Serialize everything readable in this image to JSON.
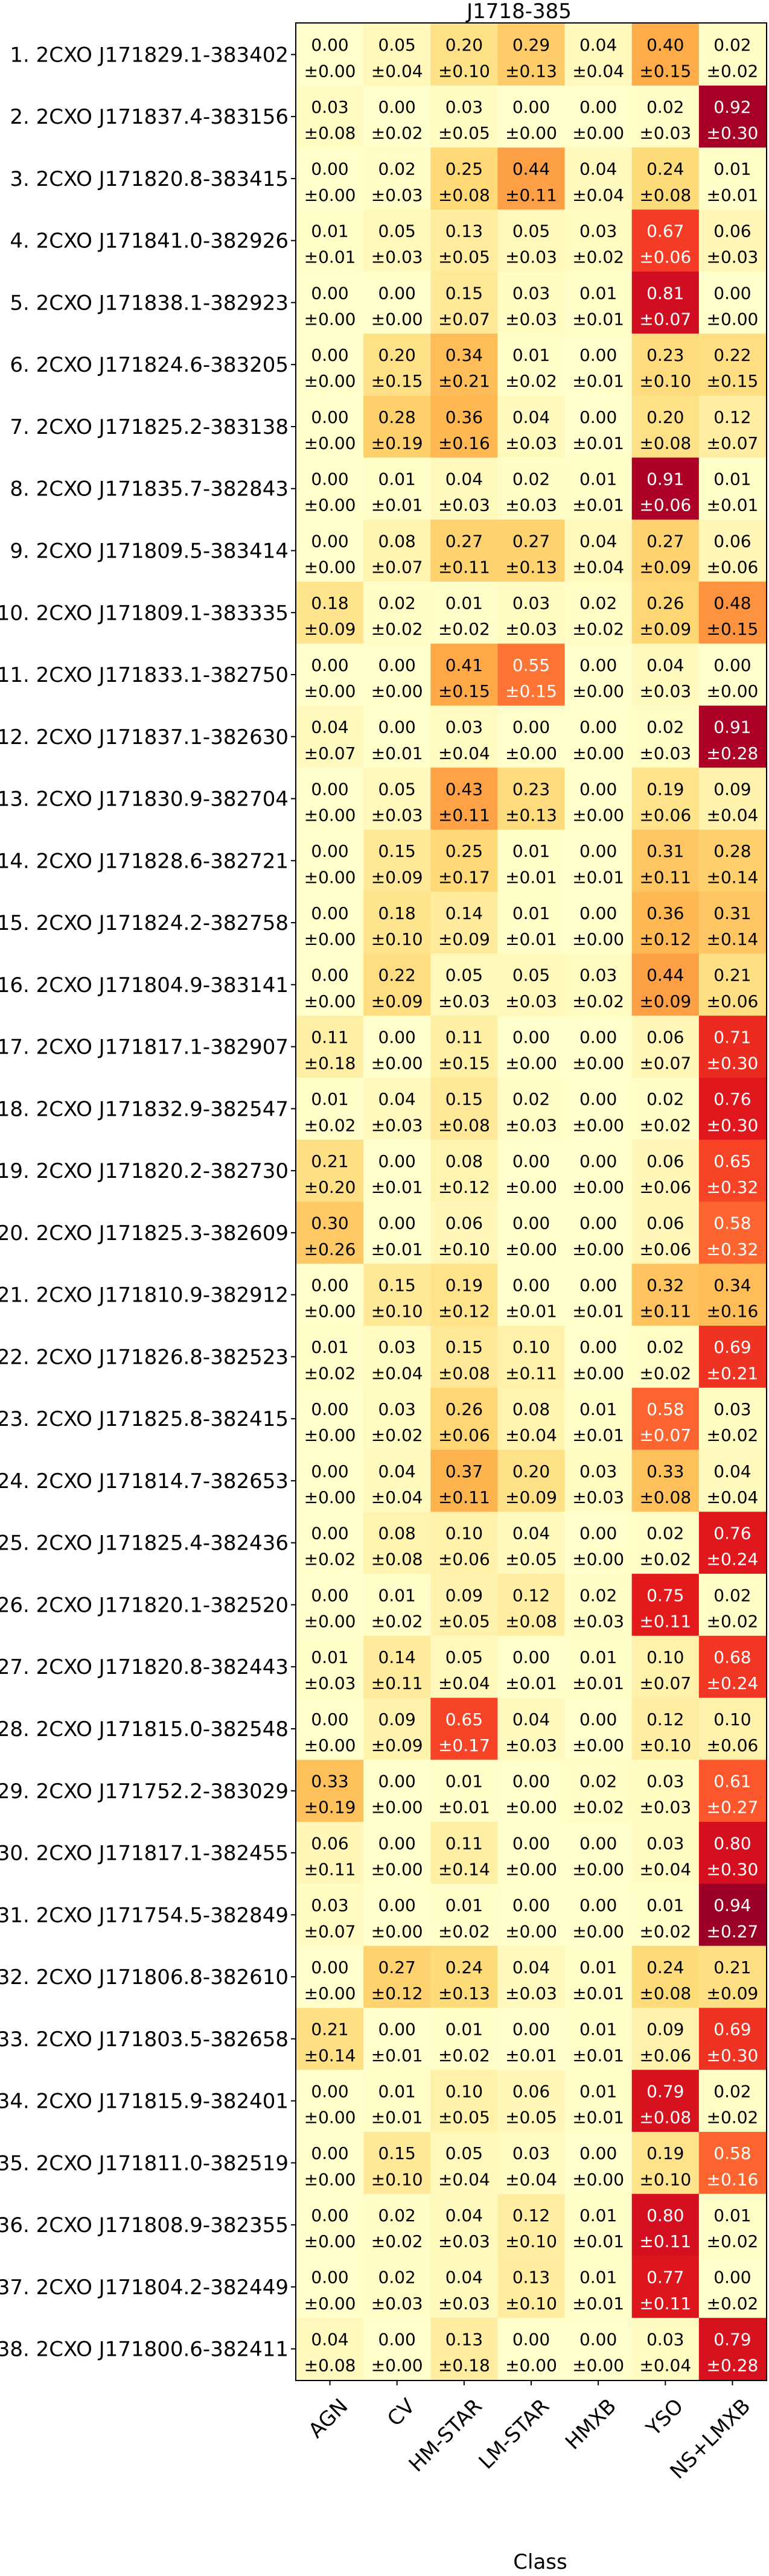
{
  "chart_data": {
    "type": "heatmap",
    "title": "J1718-385",
    "xlabel": "Class",
    "ylabel": "",
    "columns": [
      "AGN",
      "CV",
      "HM-STAR",
      "LM-STAR",
      "HMXB",
      "YSO",
      "NS+LMXB"
    ],
    "rows": [
      {
        "label": "1. 2CXO J171829.1-383402",
        "values": [
          0.0,
          0.05,
          0.2,
          0.29,
          0.04,
          0.4,
          0.02
        ],
        "errors": [
          0.0,
          0.04,
          0.1,
          0.13,
          0.04,
          0.15,
          0.02
        ]
      },
      {
        "label": "2. 2CXO J171837.4-383156",
        "values": [
          0.03,
          0.0,
          0.03,
          0.0,
          0.0,
          0.02,
          0.92
        ],
        "errors": [
          0.08,
          0.02,
          0.05,
          0.0,
          0.0,
          0.03,
          0.3
        ]
      },
      {
        "label": "3. 2CXO J171820.8-383415",
        "values": [
          0.0,
          0.02,
          0.25,
          0.44,
          0.04,
          0.24,
          0.01
        ],
        "errors": [
          0.0,
          0.03,
          0.08,
          0.11,
          0.04,
          0.08,
          0.01
        ]
      },
      {
        "label": "4. 2CXO J171841.0-382926",
        "values": [
          0.01,
          0.05,
          0.13,
          0.05,
          0.03,
          0.67,
          0.06
        ],
        "errors": [
          0.01,
          0.03,
          0.05,
          0.03,
          0.02,
          0.06,
          0.03
        ]
      },
      {
        "label": "5. 2CXO J171838.1-382923",
        "values": [
          0.0,
          0.0,
          0.15,
          0.03,
          0.01,
          0.81,
          0.0
        ],
        "errors": [
          0.0,
          0.0,
          0.07,
          0.03,
          0.01,
          0.07,
          0.0
        ]
      },
      {
        "label": "6. 2CXO J171824.6-383205",
        "values": [
          0.0,
          0.2,
          0.34,
          0.01,
          0.0,
          0.23,
          0.22
        ],
        "errors": [
          0.0,
          0.15,
          0.21,
          0.02,
          0.01,
          0.1,
          0.15
        ]
      },
      {
        "label": "7. 2CXO J171825.2-383138",
        "values": [
          0.0,
          0.28,
          0.36,
          0.04,
          0.0,
          0.2,
          0.12
        ],
        "errors": [
          0.0,
          0.19,
          0.16,
          0.03,
          0.01,
          0.08,
          0.07
        ]
      },
      {
        "label": "8. 2CXO J171835.7-382843",
        "values": [
          0.0,
          0.01,
          0.04,
          0.02,
          0.01,
          0.91,
          0.01
        ],
        "errors": [
          0.0,
          0.01,
          0.03,
          0.03,
          0.01,
          0.06,
          0.01
        ]
      },
      {
        "label": "9. 2CXO J171809.5-383414",
        "values": [
          0.0,
          0.08,
          0.27,
          0.27,
          0.04,
          0.27,
          0.06
        ],
        "errors": [
          0.0,
          0.07,
          0.11,
          0.13,
          0.04,
          0.09,
          0.06
        ]
      },
      {
        "label": "10. 2CXO J171809.1-383335",
        "values": [
          0.18,
          0.02,
          0.01,
          0.03,
          0.02,
          0.26,
          0.48
        ],
        "errors": [
          0.09,
          0.02,
          0.02,
          0.03,
          0.02,
          0.09,
          0.15
        ]
      },
      {
        "label": "11. 2CXO J171833.1-382750",
        "values": [
          0.0,
          0.0,
          0.41,
          0.55,
          0.0,
          0.04,
          0.0
        ],
        "errors": [
          0.0,
          0.0,
          0.15,
          0.15,
          0.0,
          0.03,
          0.0
        ]
      },
      {
        "label": "12. 2CXO J171837.1-382630",
        "values": [
          0.04,
          0.0,
          0.03,
          0.0,
          0.0,
          0.02,
          0.91
        ],
        "errors": [
          0.07,
          0.01,
          0.04,
          0.0,
          0.0,
          0.03,
          0.28
        ]
      },
      {
        "label": "13. 2CXO J171830.9-382704",
        "values": [
          0.0,
          0.05,
          0.43,
          0.23,
          0.0,
          0.19,
          0.09
        ],
        "errors": [
          0.0,
          0.03,
          0.11,
          0.13,
          0.0,
          0.06,
          0.04
        ]
      },
      {
        "label": "14. 2CXO J171828.6-382721",
        "values": [
          0.0,
          0.15,
          0.25,
          0.01,
          0.0,
          0.31,
          0.28
        ],
        "errors": [
          0.0,
          0.09,
          0.17,
          0.01,
          0.01,
          0.11,
          0.14
        ]
      },
      {
        "label": "15. 2CXO J171824.2-382758",
        "values": [
          0.0,
          0.18,
          0.14,
          0.01,
          0.0,
          0.36,
          0.31
        ],
        "errors": [
          0.0,
          0.1,
          0.09,
          0.01,
          0.0,
          0.12,
          0.14
        ]
      },
      {
        "label": "16. 2CXO J171804.9-383141",
        "values": [
          0.0,
          0.22,
          0.05,
          0.05,
          0.03,
          0.44,
          0.21
        ],
        "errors": [
          0.0,
          0.09,
          0.03,
          0.03,
          0.02,
          0.09,
          0.06
        ]
      },
      {
        "label": "17. 2CXO J171817.1-382907",
        "values": [
          0.11,
          0.0,
          0.11,
          0.0,
          0.0,
          0.06,
          0.71
        ],
        "errors": [
          0.18,
          0.0,
          0.15,
          0.0,
          0.0,
          0.07,
          0.3
        ]
      },
      {
        "label": "18. 2CXO J171832.9-382547",
        "values": [
          0.01,
          0.04,
          0.15,
          0.02,
          0.0,
          0.02,
          0.76
        ],
        "errors": [
          0.02,
          0.03,
          0.08,
          0.03,
          0.0,
          0.02,
          0.3
        ]
      },
      {
        "label": "19. 2CXO J171820.2-382730",
        "values": [
          0.21,
          0.0,
          0.08,
          0.0,
          0.0,
          0.06,
          0.65
        ],
        "errors": [
          0.2,
          0.01,
          0.12,
          0.0,
          0.0,
          0.06,
          0.32
        ]
      },
      {
        "label": "20. 2CXO J171825.3-382609",
        "values": [
          0.3,
          0.0,
          0.06,
          0.0,
          0.0,
          0.06,
          0.58
        ],
        "errors": [
          0.26,
          0.01,
          0.1,
          0.0,
          0.0,
          0.06,
          0.32
        ]
      },
      {
        "label": "21. 2CXO J171810.9-382912",
        "values": [
          0.0,
          0.15,
          0.19,
          0.0,
          0.0,
          0.32,
          0.34
        ],
        "errors": [
          0.0,
          0.1,
          0.12,
          0.01,
          0.01,
          0.11,
          0.16
        ]
      },
      {
        "label": "22. 2CXO J171826.8-382523",
        "values": [
          0.01,
          0.03,
          0.15,
          0.1,
          0.0,
          0.02,
          0.69
        ],
        "errors": [
          0.02,
          0.04,
          0.08,
          0.11,
          0.0,
          0.02,
          0.21
        ]
      },
      {
        "label": "23. 2CXO J171825.8-382415",
        "values": [
          0.0,
          0.03,
          0.26,
          0.08,
          0.01,
          0.58,
          0.03
        ],
        "errors": [
          0.0,
          0.02,
          0.06,
          0.04,
          0.01,
          0.07,
          0.02
        ]
      },
      {
        "label": "24. 2CXO J171814.7-382653",
        "values": [
          0.0,
          0.04,
          0.37,
          0.2,
          0.03,
          0.33,
          0.04
        ],
        "errors": [
          0.0,
          0.04,
          0.11,
          0.09,
          0.03,
          0.08,
          0.04
        ]
      },
      {
        "label": "25. 2CXO J171825.4-382436",
        "values": [
          0.0,
          0.08,
          0.1,
          0.04,
          0.0,
          0.02,
          0.76
        ],
        "errors": [
          0.02,
          0.08,
          0.06,
          0.05,
          0.0,
          0.02,
          0.24
        ]
      },
      {
        "label": "26. 2CXO J171820.1-382520",
        "values": [
          0.0,
          0.01,
          0.09,
          0.12,
          0.02,
          0.75,
          0.02
        ],
        "errors": [
          0.0,
          0.02,
          0.05,
          0.08,
          0.03,
          0.11,
          0.02
        ]
      },
      {
        "label": "27. 2CXO J171820.8-382443",
        "values": [
          0.01,
          0.14,
          0.05,
          0.0,
          0.01,
          0.1,
          0.68
        ],
        "errors": [
          0.03,
          0.11,
          0.04,
          0.01,
          0.01,
          0.07,
          0.24
        ]
      },
      {
        "label": "28. 2CXO J171815.0-382548",
        "values": [
          0.0,
          0.09,
          0.65,
          0.04,
          0.0,
          0.12,
          0.1
        ],
        "errors": [
          0.0,
          0.09,
          0.17,
          0.03,
          0.0,
          0.1,
          0.06
        ]
      },
      {
        "label": "29. 2CXO J171752.2-383029",
        "values": [
          0.33,
          0.0,
          0.01,
          0.0,
          0.02,
          0.03,
          0.61
        ],
        "errors": [
          0.19,
          0.0,
          0.01,
          0.0,
          0.02,
          0.03,
          0.27
        ]
      },
      {
        "label": "30. 2CXO J171817.1-382455",
        "values": [
          0.06,
          0.0,
          0.11,
          0.0,
          0.0,
          0.03,
          0.8
        ],
        "errors": [
          0.11,
          0.0,
          0.14,
          0.0,
          0.0,
          0.04,
          0.3
        ]
      },
      {
        "label": "31. 2CXO J171754.5-382849",
        "values": [
          0.03,
          0.0,
          0.01,
          0.0,
          0.0,
          0.01,
          0.94
        ],
        "errors": [
          0.07,
          0.0,
          0.02,
          0.0,
          0.0,
          0.02,
          0.27
        ]
      },
      {
        "label": "32. 2CXO J171806.8-382610",
        "values": [
          0.0,
          0.27,
          0.24,
          0.04,
          0.01,
          0.24,
          0.21
        ],
        "errors": [
          0.0,
          0.12,
          0.13,
          0.03,
          0.01,
          0.08,
          0.09
        ]
      },
      {
        "label": "33. 2CXO J171803.5-382658",
        "values": [
          0.21,
          0.0,
          0.01,
          0.0,
          0.01,
          0.09,
          0.69
        ],
        "errors": [
          0.14,
          0.01,
          0.02,
          0.01,
          0.01,
          0.06,
          0.3
        ]
      },
      {
        "label": "34. 2CXO J171815.9-382401",
        "values": [
          0.0,
          0.01,
          0.1,
          0.06,
          0.01,
          0.79,
          0.02
        ],
        "errors": [
          0.0,
          0.01,
          0.05,
          0.05,
          0.01,
          0.08,
          0.02
        ]
      },
      {
        "label": "35. 2CXO J171811.0-382519",
        "values": [
          0.0,
          0.15,
          0.05,
          0.03,
          0.0,
          0.19,
          0.58
        ],
        "errors": [
          0.0,
          0.1,
          0.04,
          0.04,
          0.0,
          0.1,
          0.16
        ]
      },
      {
        "label": "36. 2CXO J171808.9-382355",
        "values": [
          0.0,
          0.02,
          0.04,
          0.12,
          0.01,
          0.8,
          0.01
        ],
        "errors": [
          0.0,
          0.02,
          0.03,
          0.1,
          0.01,
          0.11,
          0.02
        ]
      },
      {
        "label": "37. 2CXO J171804.2-382449",
        "values": [
          0.0,
          0.02,
          0.04,
          0.13,
          0.01,
          0.77,
          0.0
        ],
        "errors": [
          0.0,
          0.03,
          0.03,
          0.1,
          0.01,
          0.11,
          0.02
        ]
      },
      {
        "label": "38. 2CXO J171800.6-382411",
        "values": [
          0.04,
          0.0,
          0.13,
          0.0,
          0.0,
          0.03,
          0.79
        ],
        "errors": [
          0.08,
          0.0,
          0.18,
          0.0,
          0.0,
          0.04,
          0.28
        ]
      }
    ],
    "colormap": "YlOrRd",
    "vmin": 0,
    "vmax": 1,
    "grid": false
  }
}
